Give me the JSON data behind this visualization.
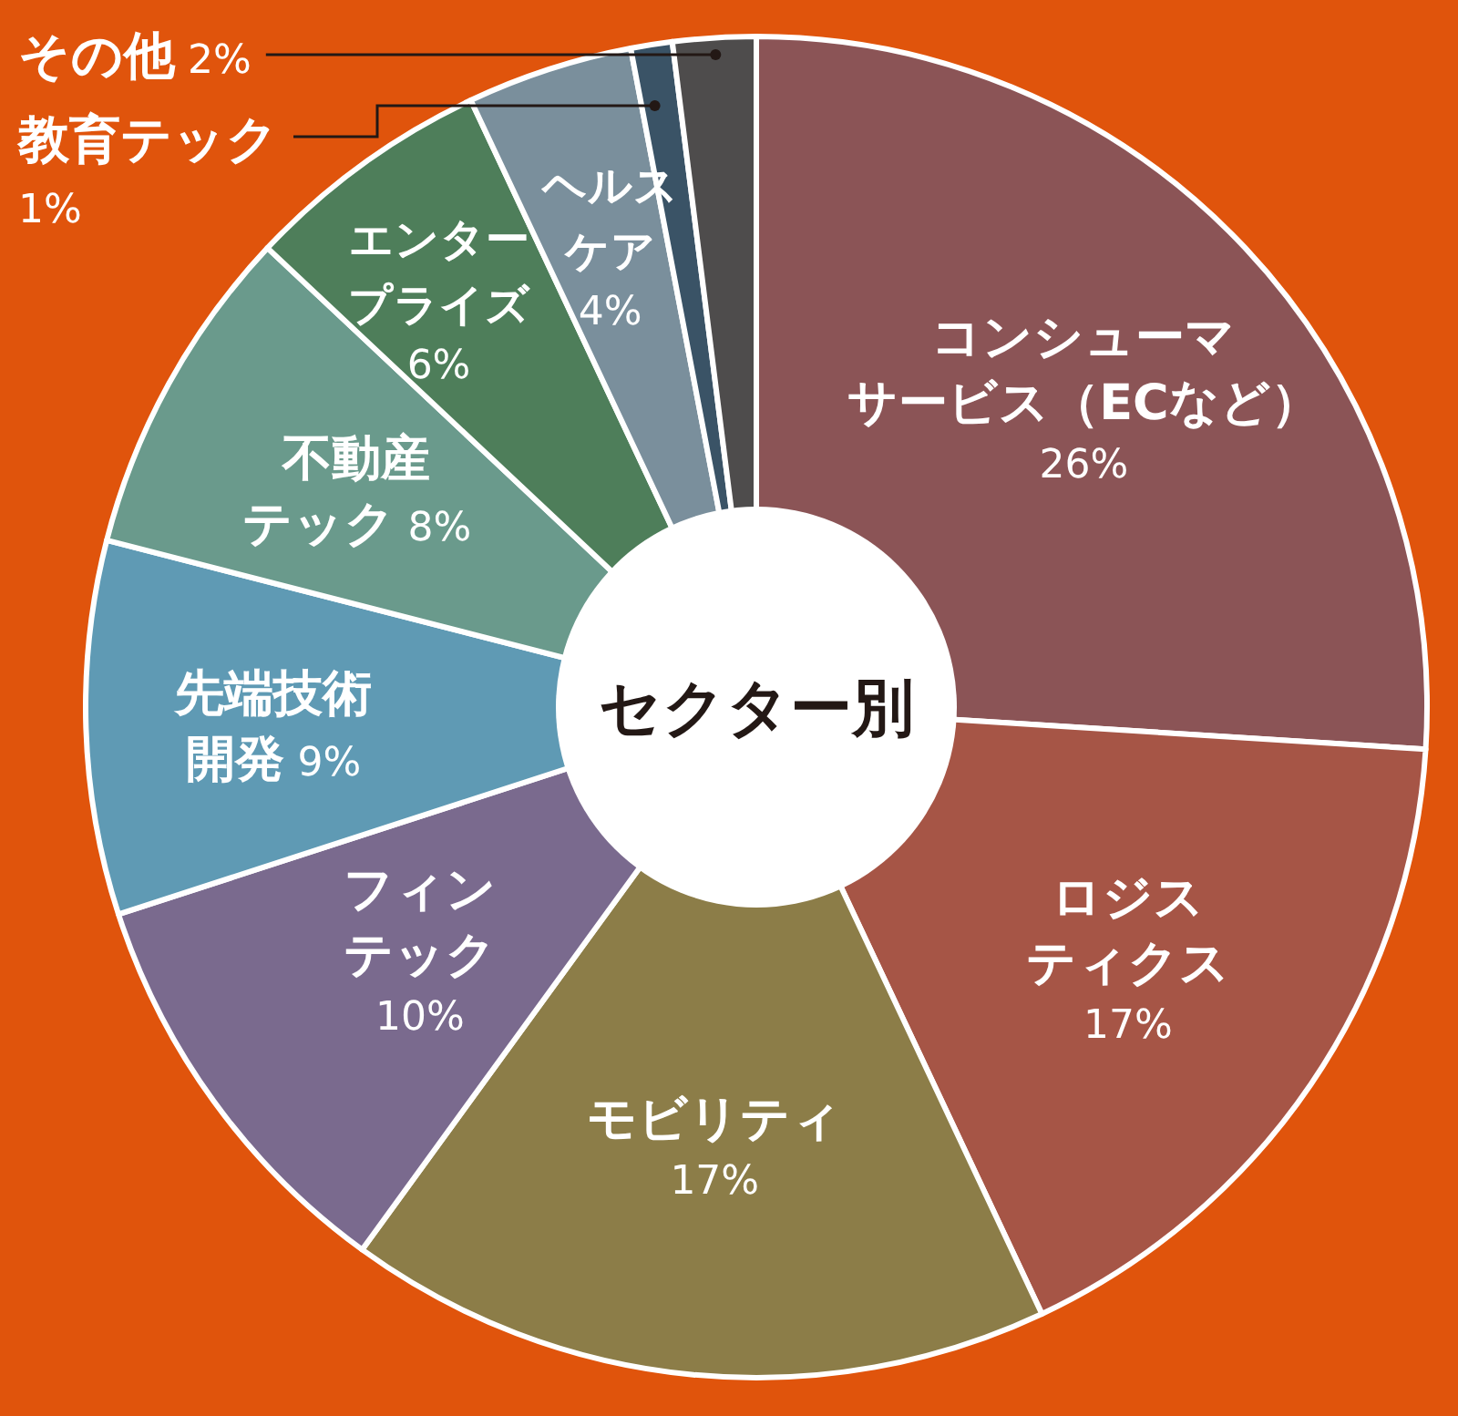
{
  "chart_data": {
    "type": "donut",
    "title": "セクター別",
    "categories": [
      "コンシューマサービス（ECなど）",
      "ロジスティクス",
      "モビリティ",
      "フィンテック",
      "先端技術開発",
      "不動産テック",
      "エンタープライズ",
      "ヘルスケア",
      "教育テック",
      "その他"
    ],
    "values": [
      26,
      17,
      17,
      10,
      9,
      8,
      6,
      4,
      1,
      2
    ],
    "value_labels": [
      "26%",
      "17%",
      "17%",
      "10%",
      "9%",
      "8%",
      "6%",
      "4%",
      "1%",
      "2%"
    ],
    "colors": [
      "#8b5456",
      "#a65546",
      "#8c7d48",
      "#7a6a8e",
      "#5f9ab4",
      "#6a9a8c",
      "#4e7e5a",
      "#7a8f9c",
      "#3a5366",
      "#4e4c4c"
    ]
  }
}
